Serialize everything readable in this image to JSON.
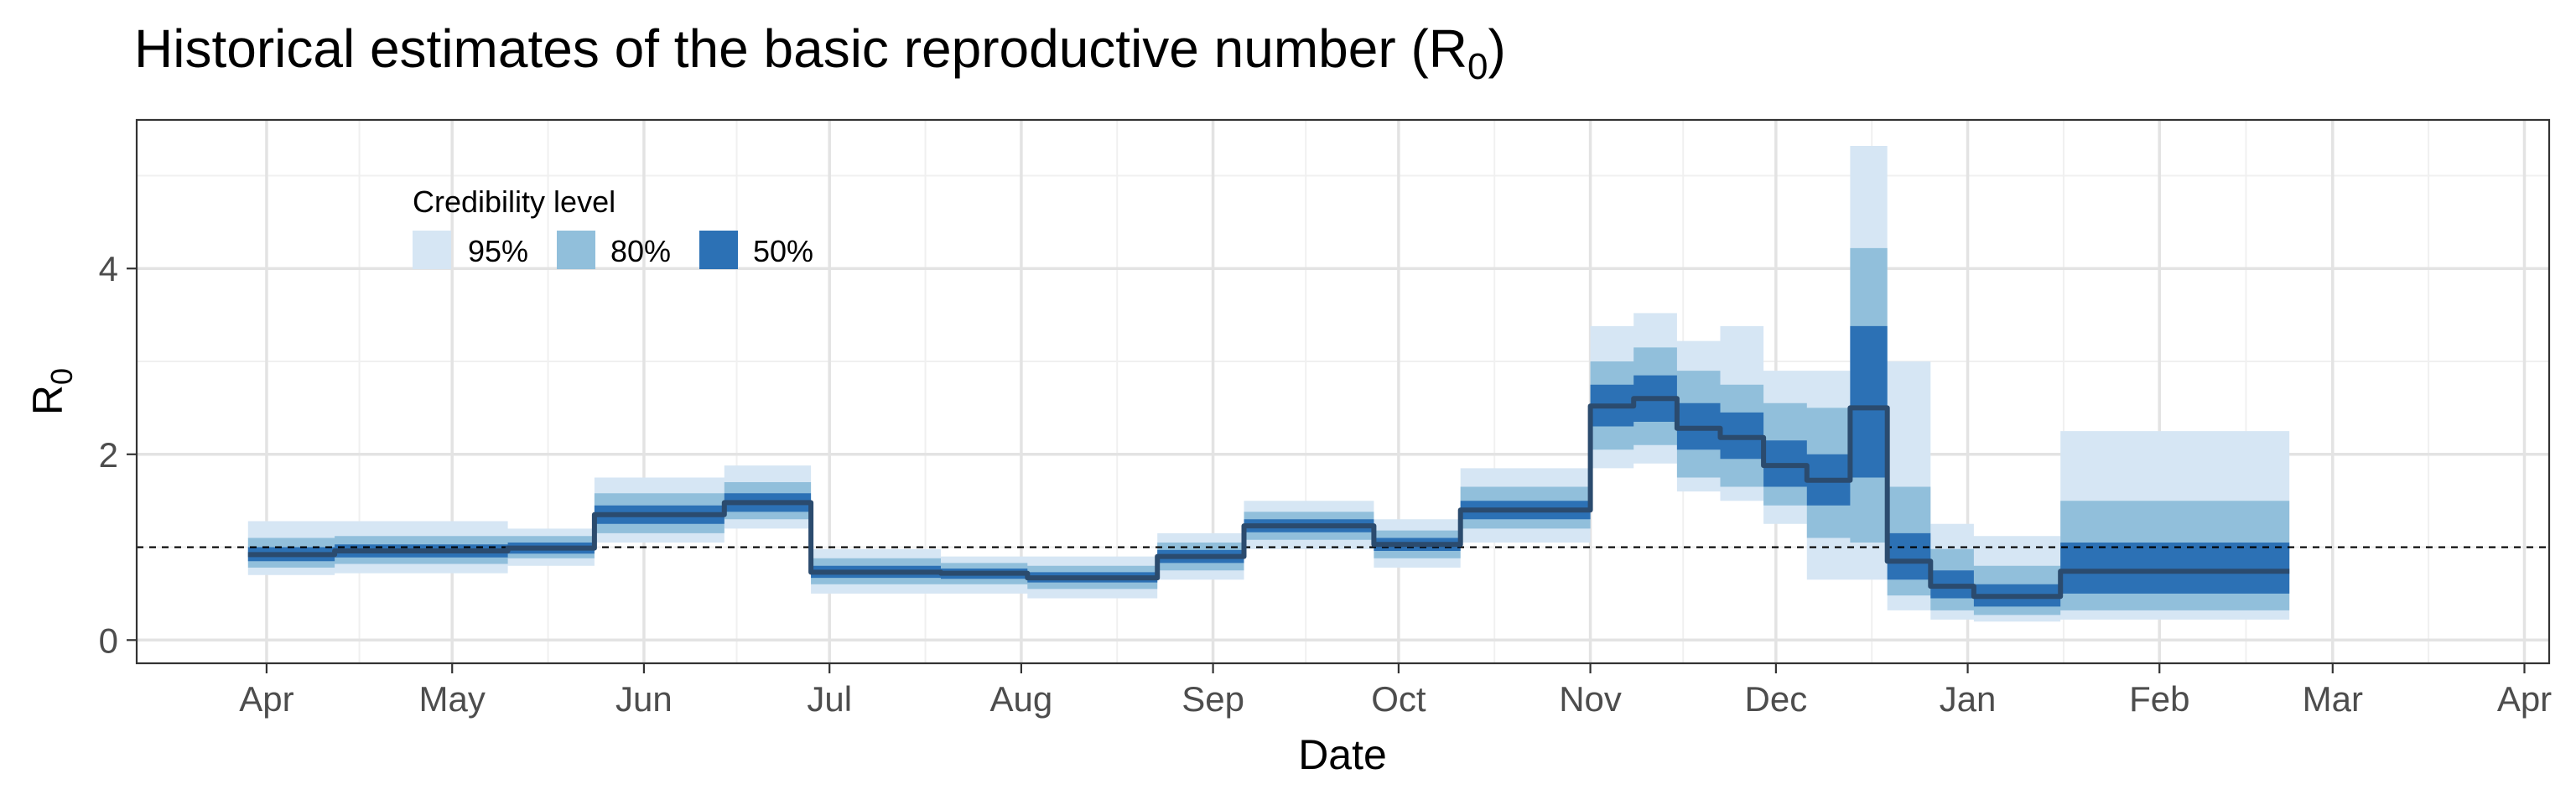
{
  "chart_data": {
    "type": "area",
    "title": "Historical estimates of the basic reproductive number (R",
    "title_subscript": "0",
    "title_suffix": ")",
    "xlabel": "Date",
    "ylabel": "R",
    "ylabel_subscript": "0",
    "x_tick_labels": [
      "Apr",
      "May",
      "Jun",
      "Jul",
      "Aug",
      "Sep",
      "Oct",
      "Nov",
      "Dec",
      "Jan",
      "Feb",
      "Mar",
      "Apr"
    ],
    "x_tick_dates": [
      "2020-04-01",
      "2020-05-01",
      "2020-06-01",
      "2020-07-01",
      "2020-08-01",
      "2020-09-01",
      "2020-10-01",
      "2020-11-01",
      "2020-12-01",
      "2021-01-01",
      "2021-02-01",
      "2021-03-01",
      "2021-04-01"
    ],
    "x_range": [
      "2020-03-11",
      "2021-04-05"
    ],
    "y_ticks": [
      "0",
      "2",
      "4"
    ],
    "y_tick_values": [
      0,
      2,
      4
    ],
    "ylim": [
      -0.25,
      5.6
    ],
    "grid": true,
    "reference_line": 1,
    "legend": {
      "title": "Credibility level",
      "position": "top-left",
      "items": [
        {
          "label": "95%",
          "color": "#d6e6f4"
        },
        {
          "label": "80%",
          "color": "#91bfdb"
        },
        {
          "label": "50%",
          "color": "#2c71b5"
        }
      ]
    },
    "median_color": "#2b4b6e",
    "segments": [
      {
        "start": "2020-03-29",
        "end": "2020-04-12",
        "median": 0.92,
        "ci50": [
          0.85,
          1.0
        ],
        "ci80": [
          0.78,
          1.1
        ],
        "ci95": [
          0.7,
          1.28
        ]
      },
      {
        "start": "2020-04-12",
        "end": "2020-05-10",
        "median": 0.96,
        "ci50": [
          0.89,
          1.03
        ],
        "ci80": [
          0.82,
          1.12
        ],
        "ci95": [
          0.72,
          1.28
        ]
      },
      {
        "start": "2020-05-10",
        "end": "2020-05-24",
        "median": 0.99,
        "ci50": [
          0.93,
          1.05
        ],
        "ci80": [
          0.88,
          1.12
        ],
        "ci95": [
          0.8,
          1.2
        ]
      },
      {
        "start": "2020-05-24",
        "end": "2020-06-14",
        "median": 1.35,
        "ci50": [
          1.25,
          1.45
        ],
        "ci80": [
          1.15,
          1.58
        ],
        "ci95": [
          1.05,
          1.75
        ]
      },
      {
        "start": "2020-06-14",
        "end": "2020-06-28",
        "median": 1.48,
        "ci50": [
          1.38,
          1.58
        ],
        "ci80": [
          1.3,
          1.7
        ],
        "ci95": [
          1.2,
          1.88
        ]
      },
      {
        "start": "2020-06-28",
        "end": "2020-07-19",
        "median": 0.73,
        "ci50": [
          0.67,
          0.8
        ],
        "ci80": [
          0.6,
          0.88
        ],
        "ci95": [
          0.5,
          0.98
        ]
      },
      {
        "start": "2020-07-19",
        "end": "2020-08-02",
        "median": 0.72,
        "ci50": [
          0.66,
          0.77
        ],
        "ci80": [
          0.6,
          0.83
        ],
        "ci95": [
          0.5,
          0.9
        ]
      },
      {
        "start": "2020-08-02",
        "end": "2020-08-23",
        "median": 0.67,
        "ci50": [
          0.62,
          0.73
        ],
        "ci80": [
          0.55,
          0.8
        ],
        "ci95": [
          0.45,
          0.9
        ]
      },
      {
        "start": "2020-08-23",
        "end": "2020-09-06",
        "median": 0.9,
        "ci50": [
          0.83,
          0.97
        ],
        "ci80": [
          0.75,
          1.05
        ],
        "ci95": [
          0.65,
          1.15
        ]
      },
      {
        "start": "2020-09-06",
        "end": "2020-09-27",
        "median": 1.23,
        "ci50": [
          1.16,
          1.3
        ],
        "ci80": [
          1.08,
          1.38
        ],
        "ci95": [
          0.98,
          1.5
        ]
      },
      {
        "start": "2020-09-27",
        "end": "2020-10-11",
        "median": 1.03,
        "ci50": [
          0.96,
          1.1
        ],
        "ci80": [
          0.88,
          1.18
        ],
        "ci95": [
          0.78,
          1.3
        ]
      },
      {
        "start": "2020-10-11",
        "end": "2020-11-01",
        "median": 1.4,
        "ci50": [
          1.3,
          1.5
        ],
        "ci80": [
          1.2,
          1.65
        ],
        "ci95": [
          1.05,
          1.85
        ]
      },
      {
        "start": "2020-11-01",
        "end": "2020-11-08",
        "median": 2.52,
        "ci50": [
          2.3,
          2.75
        ],
        "ci80": [
          2.05,
          3.0
        ],
        "ci95": [
          1.85,
          3.38
        ]
      },
      {
        "start": "2020-11-08",
        "end": "2020-11-15",
        "median": 2.6,
        "ci50": [
          2.35,
          2.85
        ],
        "ci80": [
          2.1,
          3.15
        ],
        "ci95": [
          1.9,
          3.52
        ]
      },
      {
        "start": "2020-11-15",
        "end": "2020-11-22",
        "median": 2.28,
        "ci50": [
          2.05,
          2.55
        ],
        "ci80": [
          1.75,
          2.9
        ],
        "ci95": [
          1.6,
          3.22
        ]
      },
      {
        "start": "2020-11-22",
        "end": "2020-11-29",
        "median": 2.18,
        "ci50": [
          1.95,
          2.45
        ],
        "ci80": [
          1.65,
          2.75
        ],
        "ci95": [
          1.5,
          3.38
        ]
      },
      {
        "start": "2020-11-29",
        "end": "2020-12-06",
        "median": 1.88,
        "ci50": [
          1.65,
          2.15
        ],
        "ci80": [
          1.45,
          2.55
        ],
        "ci95": [
          1.25,
          2.9
        ]
      },
      {
        "start": "2020-12-06",
        "end": "2020-12-13",
        "median": 1.72,
        "ci50": [
          1.45,
          2.0
        ],
        "ci80": [
          1.1,
          2.5
        ],
        "ci95": [
          0.65,
          2.9
        ]
      },
      {
        "start": "2020-12-13",
        "end": "2020-12-19",
        "median": 2.5,
        "ci50": [
          1.75,
          3.38
        ],
        "ci80": [
          1.05,
          4.22
        ],
        "ci95": [
          0.65,
          5.32
        ]
      },
      {
        "start": "2020-12-19",
        "end": "2020-12-26",
        "median": 0.85,
        "ci50": [
          0.65,
          1.15
        ],
        "ci80": [
          0.48,
          1.65
        ],
        "ci95": [
          0.32,
          3.0
        ]
      },
      {
        "start": "2020-12-26",
        "end": "2021-01-02",
        "median": 0.58,
        "ci50": [
          0.45,
          0.75
        ],
        "ci80": [
          0.32,
          0.98
        ],
        "ci95": [
          0.22,
          1.25
        ]
      },
      {
        "start": "2021-01-02",
        "end": "2021-01-16",
        "median": 0.47,
        "ci50": [
          0.36,
          0.6
        ],
        "ci80": [
          0.27,
          0.8
        ],
        "ci95": [
          0.2,
          1.12
        ]
      },
      {
        "start": "2021-01-16",
        "end": "2021-02-22",
        "median": 0.74,
        "ci50": [
          0.5,
          1.05
        ],
        "ci80": [
          0.32,
          1.5
        ],
        "ci95": [
          0.22,
          2.25
        ]
      }
    ]
  }
}
